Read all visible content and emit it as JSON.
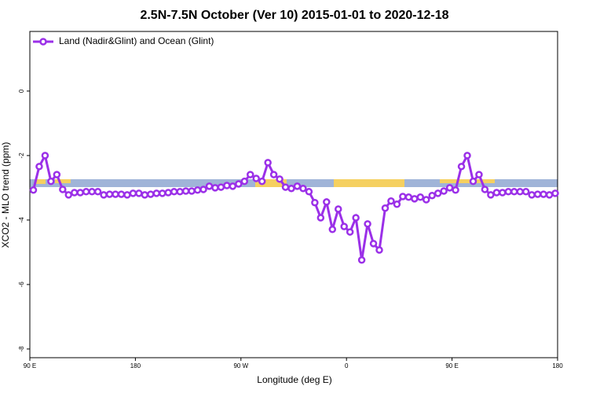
{
  "chart_data": {
    "type": "line",
    "title": "2.5N-7.5N October (Ver 10)   2015-01-01 to 2020-12-18",
    "x_label": "Longitude (deg E)",
    "y_label": "XCO2 - MLO trend (ppm)",
    "legend": "top-left",
    "xlim": [
      90,
      540
    ],
    "xticks": [
      {
        "value": 90,
        "label": "90 E"
      },
      {
        "value": 180,
        "label": "180"
      },
      {
        "value": 270,
        "label": "90 W"
      },
      {
        "value": 360,
        "label": "0"
      },
      {
        "value": 450,
        "label": "90 E"
      },
      {
        "value": 540,
        "label": "180"
      }
    ],
    "ylim": [
      -8.27,
      1.85
    ],
    "yticks": [
      0,
      -2,
      -4,
      -6,
      -8
    ],
    "x": [
      93,
      98,
      103,
      108,
      113,
      118,
      123,
      128,
      133,
      138,
      143,
      148,
      153,
      158,
      163,
      168,
      173,
      178,
      183,
      188,
      193,
      198,
      203,
      208,
      213,
      218,
      223,
      228,
      233,
      238,
      243,
      248,
      253,
      258,
      263,
      268,
      273,
      278,
      283,
      288,
      293,
      298,
      303,
      308,
      313,
      318,
      323,
      328,
      333,
      338,
      343,
      348,
      353,
      358,
      363,
      368,
      373,
      378,
      383,
      388,
      393,
      398,
      403,
      408,
      413,
      418,
      423,
      428,
      433,
      438,
      443,
      448,
      453,
      458,
      463,
      468,
      473,
      478,
      483,
      488,
      493,
      498,
      503,
      508,
      513,
      518,
      523,
      528,
      533,
      538
    ],
    "series": [
      {
        "name": "Land (Nadir&Glint) and Ocean (Glint)",
        "color": "#9b30e8",
        "values": [
          -3.07,
          -2.34,
          -2.0,
          -2.8,
          -2.59,
          -3.05,
          -3.22,
          -3.15,
          -3.15,
          -3.12,
          -3.12,
          -3.12,
          -3.22,
          -3.2,
          -3.2,
          -3.2,
          -3.22,
          -3.17,
          -3.17,
          -3.22,
          -3.2,
          -3.17,
          -3.17,
          -3.15,
          -3.12,
          -3.12,
          -3.1,
          -3.1,
          -3.07,
          -3.05,
          -2.95,
          -3.0,
          -2.98,
          -2.93,
          -2.95,
          -2.88,
          -2.8,
          -2.59,
          -2.71,
          -2.8,
          -2.22,
          -2.59,
          -2.73,
          -2.98,
          -3.02,
          -2.95,
          -3.02,
          -3.12,
          -3.46,
          -3.93,
          -3.44,
          -4.29,
          -3.66,
          -4.2,
          -4.37,
          -3.93,
          -5.24,
          -4.12,
          -4.73,
          -4.93,
          -3.63,
          -3.41,
          -3.51,
          -3.27,
          -3.29,
          -3.34,
          -3.29,
          -3.37,
          -3.24,
          -3.17,
          -3.1,
          -3.0,
          -3.07,
          -2.34,
          -2.0,
          -2.8,
          -2.59,
          -3.05,
          -3.22,
          -3.15,
          -3.15,
          -3.12,
          -3.12,
          -3.12,
          -3.12,
          -3.22,
          -3.2,
          -3.2,
          -3.22,
          -3.17
        ]
      }
    ]
  }
}
